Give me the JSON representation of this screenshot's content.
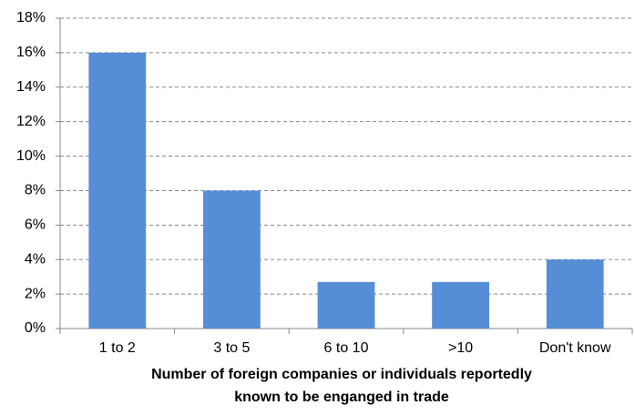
{
  "chart_data": {
    "type": "bar",
    "categories": [
      "1 to 2",
      "3 to 5",
      "6 to 10",
      ">10",
      "Don't know"
    ],
    "values": [
      16,
      8,
      2.7,
      2.7,
      4
    ],
    "color": "#558ed5",
    "x_label": [
      "Number of foreign companies or individuals reportedly",
      "known to be enganged in trade"
    ],
    "ylim": [
      0,
      18
    ],
    "yticks": [
      {
        "value": 0,
        "label": "0%"
      },
      {
        "value": 2,
        "label": "2%"
      },
      {
        "value": 4,
        "label": "4%"
      },
      {
        "value": 6,
        "label": "6%"
      },
      {
        "value": 8,
        "label": "8%"
      },
      {
        "value": 10,
        "label": "10%"
      },
      {
        "value": 12,
        "label": "12%"
      },
      {
        "value": 14,
        "label": "14%"
      },
      {
        "value": 16,
        "label": "16%"
      },
      {
        "value": 18,
        "label": "18%"
      }
    ],
    "grid": true
  }
}
